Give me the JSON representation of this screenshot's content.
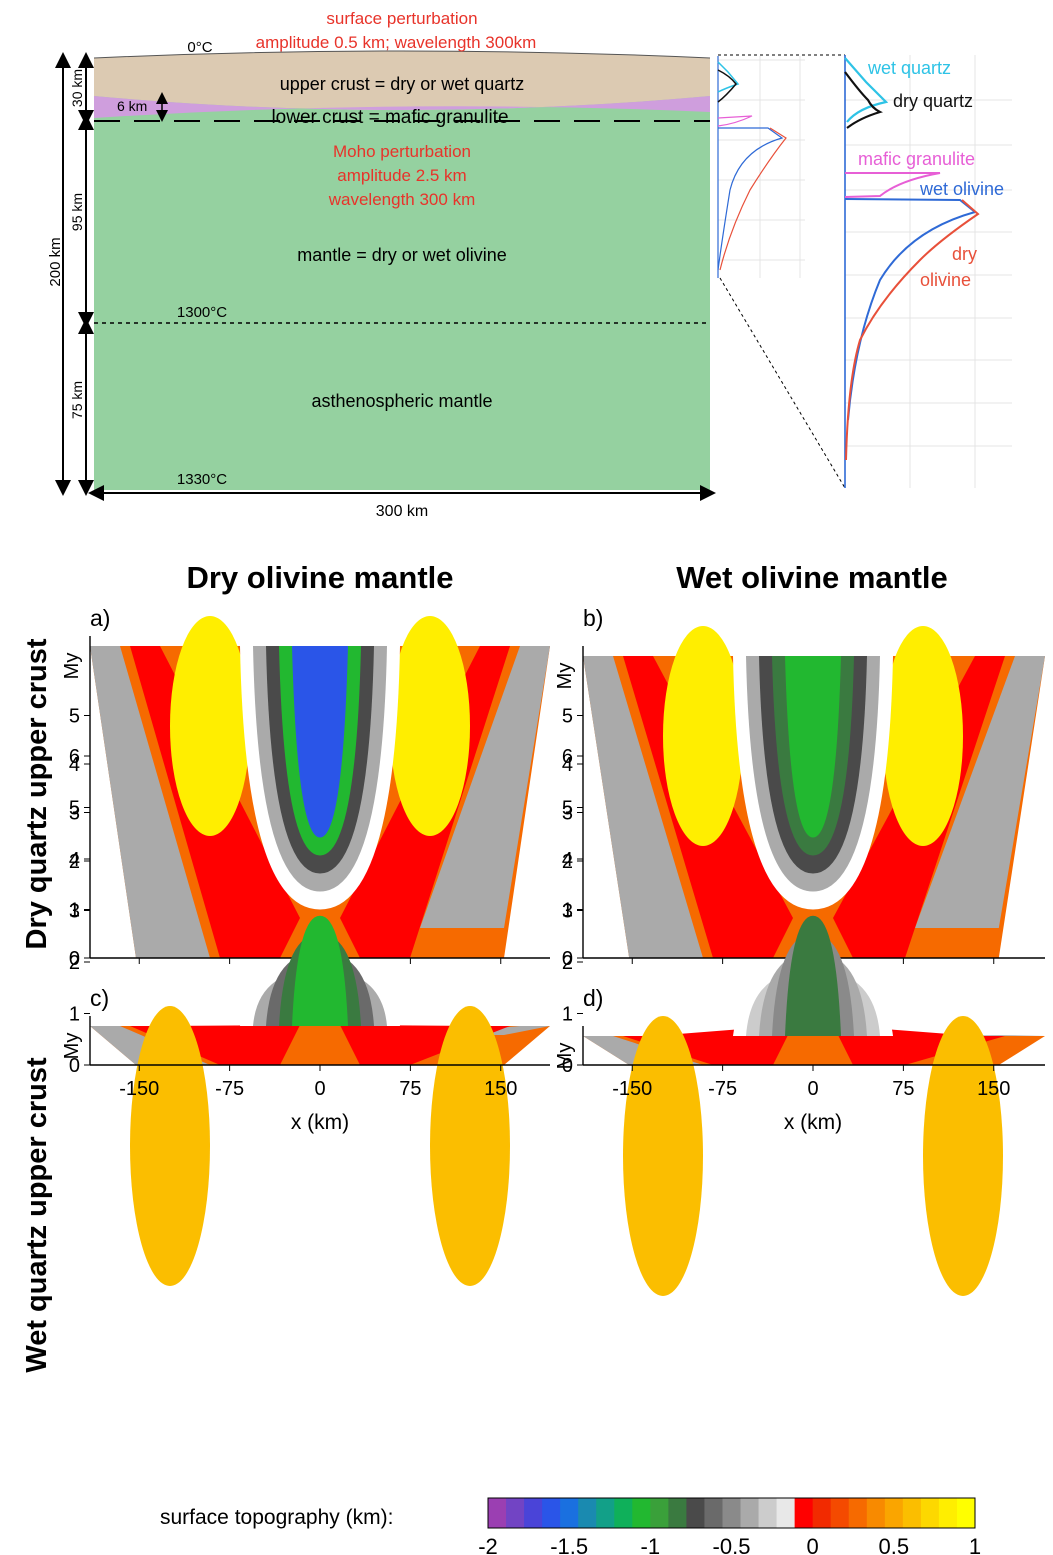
{
  "model": {
    "surface_label_1": "surface perturbation",
    "surface_label_2": "amplitude 0.5 km; wavelength 300km",
    "top_temp": "0°C",
    "upper_crust": "upper crust = dry or wet quartz",
    "lower_crust": "lower crust = mafic granulite",
    "moho_1": "Moho perturbation",
    "moho_2": "amplitude 2.5 km",
    "moho_3": "wavelength 300 km",
    "mantle": "mantle = dry or wet olivine",
    "mid_temp": "1300°C",
    "astheno": "asthenospheric mantle",
    "bottom_temp": "1330°C",
    "width": "300 km",
    "dims": {
      "d30": "30 km",
      "d6": "6 km",
      "d95": "95 km",
      "d75": "75 km",
      "d200": "200 km"
    },
    "colors": {
      "upper_crust": "#dccab2",
      "lower_crust": "#cf9edd",
      "mantle": "#95d1a0",
      "red_text": "#e8332a"
    }
  },
  "strength": {
    "labels": {
      "wet_quartz": "wet quartz",
      "dry_quartz": "dry quartz",
      "mafic": "mafic granulite",
      "wet_olivine": "wet olivine",
      "dry_olivine_1": "dry",
      "dry_olivine_2": "olivine"
    },
    "colors": {
      "wet_quartz": "#2ec3e6",
      "dry_quartz": "#111111",
      "mafic": "#e75fd6",
      "wet_olivine": "#2f6ad6",
      "dry_olivine": "#e8503a"
    }
  },
  "columns": [
    "Dry olivine mantle",
    "Wet olivine mantle"
  ],
  "rows": [
    "Dry quartz upper crust",
    "Wet quartz upper crust"
  ],
  "panels": [
    {
      "label": "a)",
      "yticks": [
        "0",
        "1",
        "2",
        "3",
        "4",
        "5"
      ],
      "yunit": "My"
    },
    {
      "label": "b)",
      "yticks": [
        "0",
        "1",
        "2",
        "3",
        "4",
        "5"
      ],
      "yunit": "My"
    },
    {
      "label": "c)",
      "yticks": [
        "0",
        "1",
        "2",
        "3",
        "4",
        "5",
        "6"
      ],
      "yunit": "My"
    },
    {
      "label": "d)",
      "yticks": [
        "0",
        "1",
        "2",
        "3",
        "4",
        "5",
        "6"
      ],
      "yunit": "My"
    }
  ],
  "xticks": [
    "-150",
    "-75",
    "0",
    "75",
    "150"
  ],
  "xlabel": "x (km)",
  "colorbar": {
    "label": "surface topography (km):",
    "ticks": [
      "-2",
      "-1.5",
      "-1",
      "-0.5",
      "0",
      "0.5",
      "1"
    ],
    "colors": [
      "#9b3fb2",
      "#7244c4",
      "#4a44d8",
      "#2a55e8",
      "#1a70e0",
      "#1a8ab0",
      "#12a088",
      "#0fb05a",
      "#22b830",
      "#3aa03a",
      "#3a7a40",
      "#4a4a4a",
      "#6a6a6a",
      "#8a8a8a",
      "#aaaaaa",
      "#cccccc",
      "#e8e8e8",
      "#ff0000",
      "#f22a00",
      "#f44a00",
      "#f66a00",
      "#f88a00",
      "#faa500",
      "#fbbe00",
      "#fdd800",
      "#ffee00",
      "#ffff00"
    ]
  }
}
